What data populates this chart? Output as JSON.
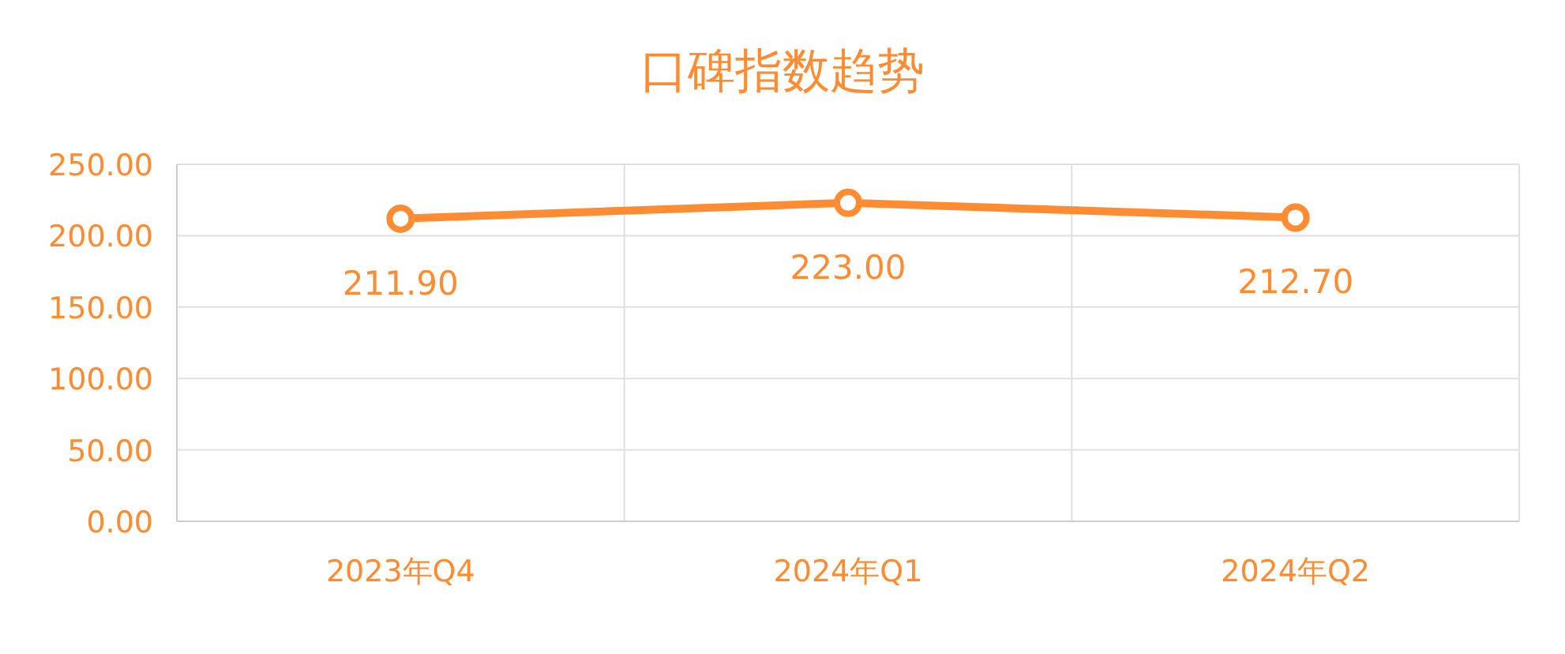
{
  "chart_data": {
    "type": "line",
    "title": "口碑指数趋势",
    "categories": [
      "2023年Q4",
      "2024年Q1",
      "2024年Q2"
    ],
    "series": [
      {
        "color": "#ff8c33",
        "values": [
          211.9,
          223.0,
          212.7
        ],
        "value_labels": [
          "211.90",
          "223.00",
          "212.70"
        ]
      }
    ],
    "ylim": [
      0,
      250
    ],
    "yticks": [
      {
        "value": 0,
        "label": "0.00"
      },
      {
        "value": 50,
        "label": "50.00"
      },
      {
        "value": 100,
        "label": "100.00"
      },
      {
        "value": 150,
        "label": "150.00"
      },
      {
        "value": 200,
        "label": "200.00"
      },
      {
        "value": 250,
        "label": "250.00"
      }
    ],
    "grid": true,
    "marker": "circle",
    "line_style": "solid"
  }
}
